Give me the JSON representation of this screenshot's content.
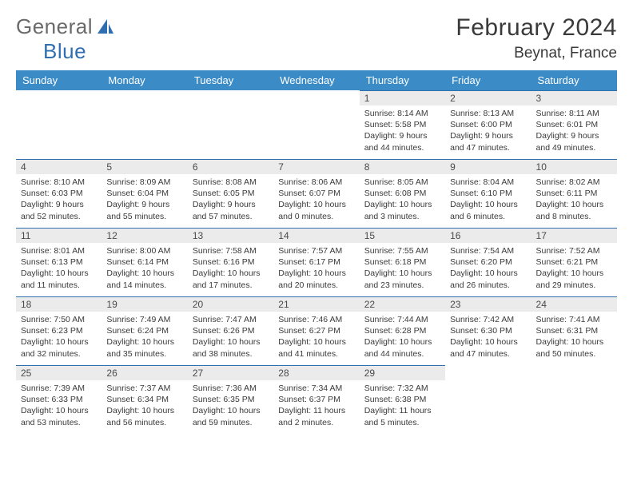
{
  "logo": {
    "text1": "General",
    "text2": "Blue"
  },
  "title": "February 2024",
  "location": "Beynat, France",
  "colors": {
    "header_bg": "#3b8bc7",
    "header_text": "#ffffff",
    "daynum_bg": "#ebebeb",
    "border": "#2f6fb0",
    "logo_gray": "#6a6a6a",
    "logo_blue": "#2f6fb0",
    "body_text": "#3a3a3a"
  },
  "weekdays": [
    "Sunday",
    "Monday",
    "Tuesday",
    "Wednesday",
    "Thursday",
    "Friday",
    "Saturday"
  ],
  "weeks": [
    [
      null,
      null,
      null,
      null,
      {
        "n": "1",
        "sr": "8:14 AM",
        "ss": "5:58 PM",
        "dl": "9 hours and 44 minutes."
      },
      {
        "n": "2",
        "sr": "8:13 AM",
        "ss": "6:00 PM",
        "dl": "9 hours and 47 minutes."
      },
      {
        "n": "3",
        "sr": "8:11 AM",
        "ss": "6:01 PM",
        "dl": "9 hours and 49 minutes."
      }
    ],
    [
      {
        "n": "4",
        "sr": "8:10 AM",
        "ss": "6:03 PM",
        "dl": "9 hours and 52 minutes."
      },
      {
        "n": "5",
        "sr": "8:09 AM",
        "ss": "6:04 PM",
        "dl": "9 hours and 55 minutes."
      },
      {
        "n": "6",
        "sr": "8:08 AM",
        "ss": "6:05 PM",
        "dl": "9 hours and 57 minutes."
      },
      {
        "n": "7",
        "sr": "8:06 AM",
        "ss": "6:07 PM",
        "dl": "10 hours and 0 minutes."
      },
      {
        "n": "8",
        "sr": "8:05 AM",
        "ss": "6:08 PM",
        "dl": "10 hours and 3 minutes."
      },
      {
        "n": "9",
        "sr": "8:04 AM",
        "ss": "6:10 PM",
        "dl": "10 hours and 6 minutes."
      },
      {
        "n": "10",
        "sr": "8:02 AM",
        "ss": "6:11 PM",
        "dl": "10 hours and 8 minutes."
      }
    ],
    [
      {
        "n": "11",
        "sr": "8:01 AM",
        "ss": "6:13 PM",
        "dl": "10 hours and 11 minutes."
      },
      {
        "n": "12",
        "sr": "8:00 AM",
        "ss": "6:14 PM",
        "dl": "10 hours and 14 minutes."
      },
      {
        "n": "13",
        "sr": "7:58 AM",
        "ss": "6:16 PM",
        "dl": "10 hours and 17 minutes."
      },
      {
        "n": "14",
        "sr": "7:57 AM",
        "ss": "6:17 PM",
        "dl": "10 hours and 20 minutes."
      },
      {
        "n": "15",
        "sr": "7:55 AM",
        "ss": "6:18 PM",
        "dl": "10 hours and 23 minutes."
      },
      {
        "n": "16",
        "sr": "7:54 AM",
        "ss": "6:20 PM",
        "dl": "10 hours and 26 minutes."
      },
      {
        "n": "17",
        "sr": "7:52 AM",
        "ss": "6:21 PM",
        "dl": "10 hours and 29 minutes."
      }
    ],
    [
      {
        "n": "18",
        "sr": "7:50 AM",
        "ss": "6:23 PM",
        "dl": "10 hours and 32 minutes."
      },
      {
        "n": "19",
        "sr": "7:49 AM",
        "ss": "6:24 PM",
        "dl": "10 hours and 35 minutes."
      },
      {
        "n": "20",
        "sr": "7:47 AM",
        "ss": "6:26 PM",
        "dl": "10 hours and 38 minutes."
      },
      {
        "n": "21",
        "sr": "7:46 AM",
        "ss": "6:27 PM",
        "dl": "10 hours and 41 minutes."
      },
      {
        "n": "22",
        "sr": "7:44 AM",
        "ss": "6:28 PM",
        "dl": "10 hours and 44 minutes."
      },
      {
        "n": "23",
        "sr": "7:42 AM",
        "ss": "6:30 PM",
        "dl": "10 hours and 47 minutes."
      },
      {
        "n": "24",
        "sr": "7:41 AM",
        "ss": "6:31 PM",
        "dl": "10 hours and 50 minutes."
      }
    ],
    [
      {
        "n": "25",
        "sr": "7:39 AM",
        "ss": "6:33 PM",
        "dl": "10 hours and 53 minutes."
      },
      {
        "n": "26",
        "sr": "7:37 AM",
        "ss": "6:34 PM",
        "dl": "10 hours and 56 minutes."
      },
      {
        "n": "27",
        "sr": "7:36 AM",
        "ss": "6:35 PM",
        "dl": "10 hours and 59 minutes."
      },
      {
        "n": "28",
        "sr": "7:34 AM",
        "ss": "6:37 PM",
        "dl": "11 hours and 2 minutes."
      },
      {
        "n": "29",
        "sr": "7:32 AM",
        "ss": "6:38 PM",
        "dl": "11 hours and 5 minutes."
      },
      null,
      null
    ]
  ],
  "labels": {
    "sunrise": "Sunrise:",
    "sunset": "Sunset:",
    "daylight": "Daylight:"
  }
}
